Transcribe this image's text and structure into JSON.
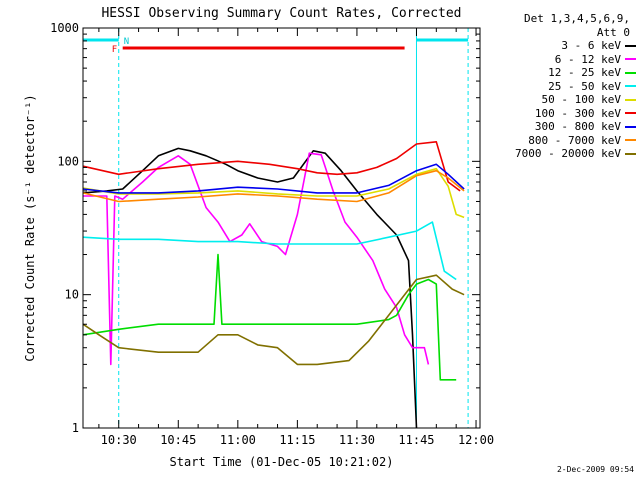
{
  "chart_data": {
    "type": "line",
    "title": "HESSI Observing Summary Count Rates, Corrected",
    "xlabel": "Start Time (01-Dec-05 10:21:02)",
    "ylabel": "Corrected Count Rate (s⁻¹ detector⁻¹)",
    "yscale": "log",
    "ylim": [
      1,
      1000
    ],
    "xlim_minutes_after_10_00": [
      21.0,
      121.0
    ],
    "x_ticks": [
      "10:30",
      "10:45",
      "11:00",
      "11:15",
      "11:30",
      "11:45",
      "12:00"
    ],
    "y_ticks": [
      "1",
      "10",
      "100",
      "1000"
    ],
    "legend_header": [
      "Det 1,3,4,5,6,9,",
      "Att 0"
    ],
    "annotations": {
      "flag_F_label": "F",
      "flag_N_label": "N",
      "night_intervals": [
        [
          "10:21",
          "10:30"
        ],
        [
          "11:45",
          "11:58"
        ]
      ],
      "flare_interval": [
        "10:31",
        "11:42"
      ]
    },
    "series": [
      {
        "name": "3 - 6 keV",
        "color": "#000000",
        "points": [
          [
            "10:21",
            58
          ],
          [
            "10:27",
            60
          ],
          [
            "10:31",
            62
          ],
          [
            "10:36",
            85
          ],
          [
            "10:40",
            110
          ],
          [
            "10:45",
            125
          ],
          [
            "10:48",
            120
          ],
          [
            "10:52",
            110
          ],
          [
            "10:57",
            95
          ],
          [
            "11:00",
            85
          ],
          [
            "11:05",
            75
          ],
          [
            "11:10",
            70
          ],
          [
            "11:14",
            75
          ],
          [
            "11:19",
            120
          ],
          [
            "11:22",
            115
          ],
          [
            "11:26",
            85
          ],
          [
            "11:30",
            60
          ],
          [
            "11:35",
            40
          ],
          [
            "11:40",
            28
          ],
          [
            "11:43",
            18
          ],
          [
            "11:44",
            5
          ],
          [
            "11:45",
            1
          ]
        ]
      },
      {
        "name": "6 - 12 keV",
        "color": "#ff00ff",
        "points": [
          [
            "10:21",
            55
          ],
          [
            "10:27",
            55
          ],
          [
            "10:28",
            3
          ],
          [
            "10:29",
            55
          ],
          [
            "10:31",
            52
          ],
          [
            "10:36",
            70
          ],
          [
            "10:40",
            90
          ],
          [
            "10:45",
            110
          ],
          [
            "10:48",
            95
          ],
          [
            "10:52",
            45
          ],
          [
            "10:55",
            35
          ],
          [
            "10:58",
            25
          ],
          [
            "11:01",
            28
          ],
          [
            "11:03",
            34
          ],
          [
            "11:06",
            25
          ],
          [
            "11:10",
            23
          ],
          [
            "11:12",
            20
          ],
          [
            "11:15",
            40
          ],
          [
            "11:18",
            115
          ],
          [
            "11:21",
            112
          ],
          [
            "11:24",
            60
          ],
          [
            "11:27",
            35
          ],
          [
            "11:30",
            27
          ],
          [
            "11:34",
            18
          ],
          [
            "11:37",
            11
          ],
          [
            "11:40",
            8
          ],
          [
            "11:42",
            5
          ],
          [
            "11:44",
            4
          ],
          [
            "11:47",
            4
          ],
          [
            "11:48",
            3
          ]
        ]
      },
      {
        "name": "12 - 25 keV",
        "color": "#00dd00",
        "points": [
          [
            "10:21",
            5
          ],
          [
            "10:30",
            5.5
          ],
          [
            "10:40",
            6
          ],
          [
            "10:50",
            6
          ],
          [
            "10:54",
            6
          ],
          [
            "10:55",
            20
          ],
          [
            "10:56",
            6
          ],
          [
            "11:00",
            6
          ],
          [
            "11:10",
            6
          ],
          [
            "11:20",
            6
          ],
          [
            "11:30",
            6
          ],
          [
            "11:38",
            6.5
          ],
          [
            "11:40",
            7
          ],
          [
            "11:43",
            10
          ],
          [
            "11:45",
            12
          ],
          [
            "11:48",
            13
          ],
          [
            "11:50",
            12
          ],
          [
            "11:51",
            2.3
          ],
          [
            "11:55",
            2.3
          ]
        ]
      },
      {
        "name": "25 - 50 keV",
        "color": "#00eeee",
        "points": [
          [
            "10:21",
            27
          ],
          [
            "10:30",
            26
          ],
          [
            "10:40",
            26
          ],
          [
            "10:50",
            25
          ],
          [
            "11:00",
            25
          ],
          [
            "11:10",
            24
          ],
          [
            "11:20",
            24
          ],
          [
            "11:30",
            24
          ],
          [
            "11:38",
            27
          ],
          [
            "11:45",
            30
          ],
          [
            "11:49",
            35
          ],
          [
            "11:52",
            15
          ],
          [
            "11:55",
            13
          ]
        ]
      },
      {
        "name": "50 - 100 keV",
        "color": "#dddd00",
        "points": [
          [
            "10:21",
            63
          ],
          [
            "10:30",
            57
          ],
          [
            "10:40",
            57
          ],
          [
            "10:50",
            58
          ],
          [
            "11:00",
            60
          ],
          [
            "11:10",
            57
          ],
          [
            "11:20",
            55
          ],
          [
            "11:30",
            55
          ],
          [
            "11:38",
            62
          ],
          [
            "11:45",
            80
          ],
          [
            "11:50",
            88
          ],
          [
            "11:53",
            65
          ],
          [
            "11:55",
            40
          ],
          [
            "11:57",
            38
          ]
        ]
      },
      {
        "name": "100 - 300 keV",
        "color": "#ee0000",
        "points": [
          [
            "10:21",
            92
          ],
          [
            "10:30",
            80
          ],
          [
            "10:40",
            88
          ],
          [
            "10:50",
            95
          ],
          [
            "11:00",
            100
          ],
          [
            "11:08",
            95
          ],
          [
            "11:15",
            88
          ],
          [
            "11:20",
            82
          ],
          [
            "11:25",
            80
          ],
          [
            "11:30",
            82
          ],
          [
            "11:35",
            90
          ],
          [
            "11:40",
            105
          ],
          [
            "11:45",
            135
          ],
          [
            "11:50",
            140
          ],
          [
            "11:53",
            70
          ],
          [
            "11:56",
            60
          ]
        ]
      },
      {
        "name": "300 - 800 keV",
        "color": "#0000ee",
        "points": [
          [
            "10:21",
            62
          ],
          [
            "10:30",
            58
          ],
          [
            "10:40",
            58
          ],
          [
            "10:50",
            60
          ],
          [
            "11:00",
            64
          ],
          [
            "11:10",
            62
          ],
          [
            "11:20",
            58
          ],
          [
            "11:30",
            58
          ],
          [
            "11:38",
            66
          ],
          [
            "11:45",
            85
          ],
          [
            "11:50",
            95
          ],
          [
            "11:53",
            80
          ],
          [
            "11:57",
            62
          ]
        ]
      },
      {
        "name": "800 - 7000 keV",
        "color": "#ff8800",
        "points": [
          [
            "10:21",
            58
          ],
          [
            "10:30",
            50
          ],
          [
            "10:40",
            52
          ],
          [
            "10:50",
            54
          ],
          [
            "11:00",
            57
          ],
          [
            "11:10",
            55
          ],
          [
            "11:20",
            52
          ],
          [
            "11:30",
            50
          ],
          [
            "11:38",
            58
          ],
          [
            "11:45",
            78
          ],
          [
            "11:50",
            85
          ],
          [
            "11:53",
            75
          ],
          [
            "11:57",
            60
          ]
        ]
      },
      {
        "name": "7000 - 20000 keV",
        "color": "#807000",
        "points": [
          [
            "10:21",
            6
          ],
          [
            "10:25",
            5
          ],
          [
            "10:30",
            4
          ],
          [
            "10:40",
            3.7
          ],
          [
            "10:50",
            3.7
          ],
          [
            "10:55",
            5
          ],
          [
            "11:00",
            5
          ],
          [
            "11:05",
            4.2
          ],
          [
            "11:10",
            4
          ],
          [
            "11:15",
            3
          ],
          [
            "11:20",
            3
          ],
          [
            "11:28",
            3.2
          ],
          [
            "11:33",
            4.5
          ],
          [
            "11:38",
            7
          ],
          [
            "11:42",
            10
          ],
          [
            "11:45",
            13
          ],
          [
            "11:50",
            14
          ],
          [
            "11:54",
            11
          ],
          [
            "11:57",
            10
          ]
        ]
      }
    ]
  },
  "timestamp": "2-Dec-2009 09:54"
}
